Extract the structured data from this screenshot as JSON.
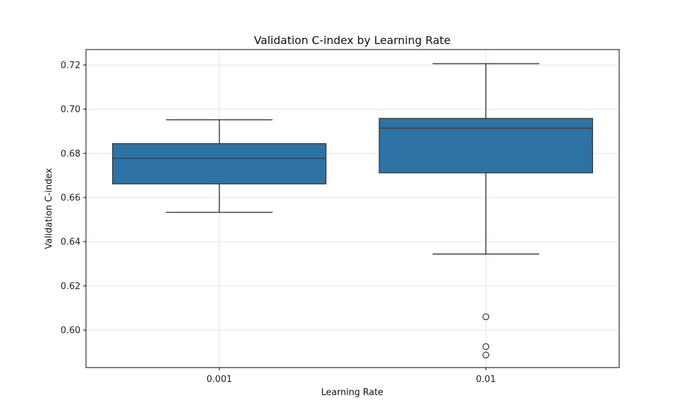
{
  "chart_data": {
    "type": "box",
    "title": "Validation C-index by Learning Rate",
    "xlabel": "Learning Rate",
    "ylabel": "Validation C-index",
    "categories": [
      "0.001",
      "0.01"
    ],
    "ylim": [
      0.583,
      0.727
    ],
    "yticks": [
      0.6,
      0.62,
      0.64,
      0.66,
      0.68,
      0.7,
      0.72
    ],
    "ytick_labels": [
      "0.60",
      "0.62",
      "0.64",
      "0.66",
      "0.68",
      "0.70",
      "0.72"
    ],
    "grid": true,
    "box_color": "#2e73a6",
    "edge_color": "#3f3f3f",
    "boxes": [
      {
        "category": "0.001",
        "whisker_low": 0.6533,
        "q1": 0.6662,
        "median": 0.6777,
        "q3": 0.6844,
        "whisker_high": 0.6952,
        "outliers": []
      },
      {
        "category": "0.01",
        "whisker_low": 0.6344,
        "q1": 0.6712,
        "median": 0.6914,
        "q3": 0.6958,
        "whisker_high": 0.7206,
        "outliers": [
          0.606,
          0.5925,
          0.5887
        ]
      }
    ]
  }
}
